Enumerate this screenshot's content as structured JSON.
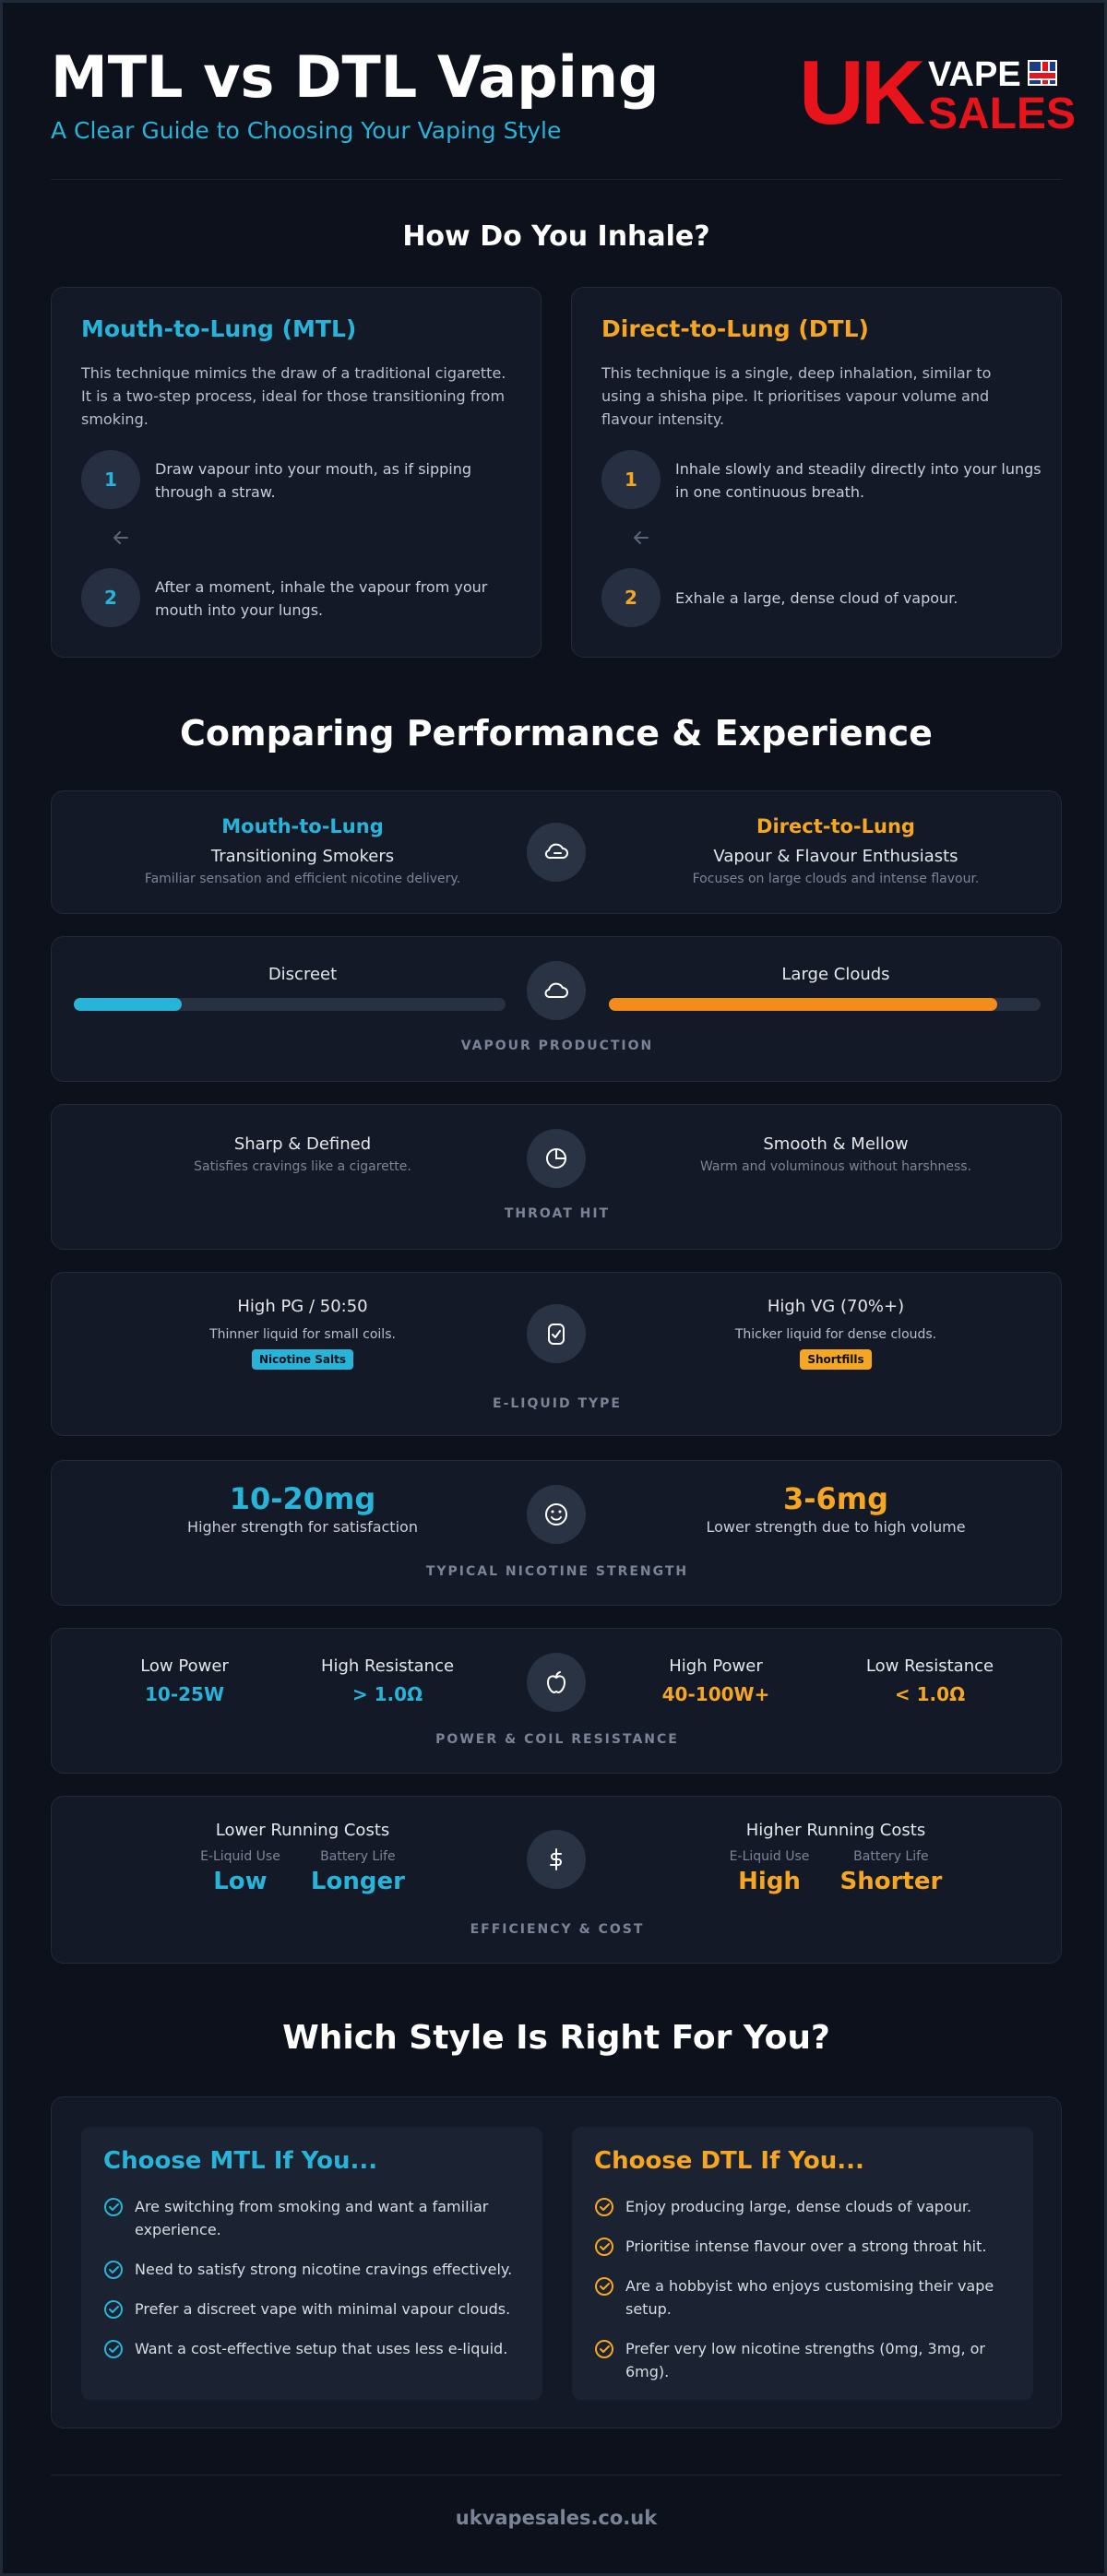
{
  "header": {
    "title": "MTL vs DTL Vaping",
    "subtitle": "A Clear Guide to Choosing Your Vaping Style",
    "logo": {
      "uk": "UK",
      "vape": "VAPE",
      "sales": "SALES"
    }
  },
  "colors": {
    "mtl": "#27b4d8",
    "dtl": "#f5a623",
    "background": "#0c111b",
    "card": "#131927"
  },
  "inhale": {
    "title": "How Do You Inhale?",
    "mtl": {
      "title": "Mouth-to-Lung (MTL)",
      "description": "This technique mimics the draw of a traditional cigarette. It is a two-step process, ideal for those transitioning from smoking.",
      "steps": [
        {
          "num": "1",
          "text": "Draw vapour into your mouth, as if sipping through a straw."
        },
        {
          "num": "2",
          "text": "After a moment, inhale the vapour from your mouth into your lungs."
        }
      ]
    },
    "dtl": {
      "title": "Direct-to-Lung (DTL)",
      "description": "This technique is a single, deep inhalation, similar to using a shisha pipe. It prioritises vapour volume and flavour intensity.",
      "steps": [
        {
          "num": "1",
          "text": "Inhale slowly and steadily directly into your lungs in one continuous breath."
        },
        {
          "num": "2",
          "text": "Exhale a large, dense cloud of vapour."
        }
      ]
    }
  },
  "comparison": {
    "title": "Comparing Performance & Experience",
    "audience": {
      "mtl": {
        "title": "Mouth-to-Lung",
        "main": "Transitioning Smokers",
        "note": "Familiar sensation and efficient nicotine delivery."
      },
      "dtl": {
        "title": "Direct-to-Lung",
        "main": "Vapour & Flavour Enthusiasts",
        "note": "Focuses on large clouds and intense flavour."
      },
      "icon": "cloud-exhale-icon"
    },
    "vapour": {
      "label": "VAPOUR PRODUCTION",
      "mtl": {
        "text": "Discreet",
        "level": 0.25
      },
      "dtl": {
        "text": "Large Clouds",
        "level": 0.9
      },
      "icon": "cloud-icon"
    },
    "throat": {
      "label": "THROAT HIT",
      "mtl": {
        "main": "Sharp & Defined",
        "note": "Satisfies cravings like a cigarette."
      },
      "dtl": {
        "main": "Smooth & Mellow",
        "note": "Warm and voluminous without harshness."
      },
      "icon": "half-cloud-icon"
    },
    "eliquid": {
      "label": "E-LIQUID TYPE",
      "mtl": {
        "main": "High PG / 50:50",
        "note": "Thinner liquid for small coils.",
        "tag": "Nicotine Salts"
      },
      "dtl": {
        "main": "High VG (70%+)",
        "note": "Thicker liquid for dense clouds.",
        "tag": "Shortfills"
      },
      "icon": "bottle-check-icon"
    },
    "nicotine": {
      "label": "TYPICAL NICOTINE STRENGTH",
      "mtl": {
        "value": "10-20mg",
        "note": "Higher strength for satisfaction"
      },
      "dtl": {
        "value": "3-6mg",
        "note": "Lower strength due to high volume"
      },
      "icon": "smile-icon"
    },
    "power": {
      "label": "POWER & COIL RESISTANCE",
      "mtl": [
        {
          "k": "Low Power",
          "v": "10-25W"
        },
        {
          "k": "High Resistance",
          "v": "> 1.0Ω"
        }
      ],
      "dtl": [
        {
          "k": "High Power",
          "v": "40-100W+"
        },
        {
          "k": "Low Resistance",
          "v": "< 1.0Ω"
        }
      ],
      "icon": "apple-icon"
    },
    "cost": {
      "label": "EFFICIENCY & COST",
      "mtl": {
        "main": "Lower Running Costs",
        "pairs": [
          {
            "k": "E-Liquid Use",
            "v": "Low"
          },
          {
            "k": "Battery Life",
            "v": "Longer"
          }
        ]
      },
      "dtl": {
        "main": "Higher Running Costs",
        "pairs": [
          {
            "k": "E-Liquid Use",
            "v": "High"
          },
          {
            "k": "Battery Life",
            "v": "Shorter"
          }
        ]
      },
      "icon": "dollar-icon"
    }
  },
  "choose": {
    "title": "Which Style Is Right For You?",
    "mtl": {
      "title": "Choose MTL If You...",
      "items": [
        "Are switching from smoking and want a familiar experience.",
        "Need to satisfy strong nicotine cravings effectively.",
        "Prefer a discreet vape with minimal vapour clouds.",
        "Want a cost-effective setup that uses less e-liquid."
      ]
    },
    "dtl": {
      "title": "Choose DTL If You...",
      "items": [
        "Enjoy producing large, dense clouds of vapour.",
        "Prioritise intense flavour over a strong throat hit.",
        "Are a hobbyist who enjoys customising their vape setup.",
        "Prefer very low nicotine strengths (0mg, 3mg, or 6mg)."
      ]
    }
  },
  "footer": {
    "url": "ukvapesales.co.uk"
  }
}
